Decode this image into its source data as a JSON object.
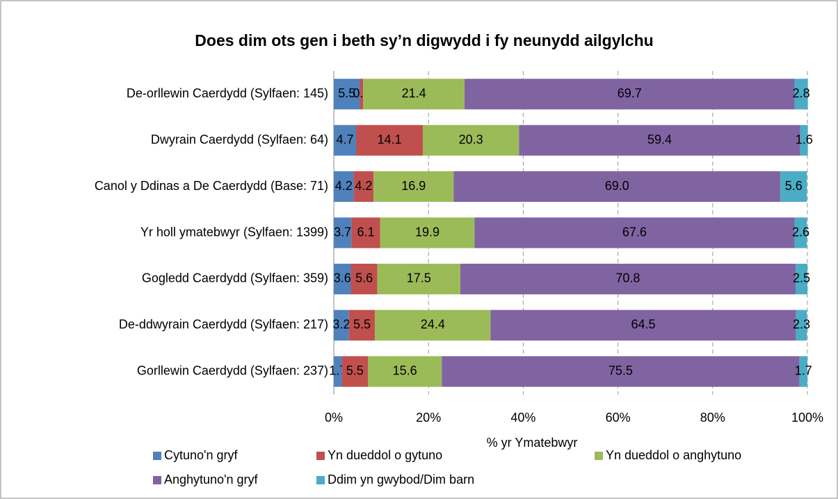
{
  "chart_data": {
    "type": "stacked_barh",
    "title": "Does dim ots gen i beth sy’n digwydd i fy neunydd ailgylchu",
    "xlabel": "% yr Ymatebwyr",
    "categories": [
      "De-orllewin Caerdydd (Sylfaen: 145)",
      "Dwyrain Caerdydd (Sylfaen: 64)",
      "Canol y Ddinas a De Caerdydd (Base: 71)",
      "Yr holl ymatebwyr (Sylfaen: 1399)",
      "Gogledd Caerdydd (Sylfaen: 359)",
      "De-ddwyrain Caerdydd (Sylfaen: 217)",
      "Gorllewin Caerdydd (Sylfaen: 237)"
    ],
    "series": [
      {
        "name": "Cytuno'n gryf",
        "color": "#4f81bd",
        "values": [
          5.5,
          4.7,
          4.2,
          3.7,
          3.6,
          3.2,
          1.7
        ]
      },
      {
        "name": "Yn dueddol o gytuno",
        "color": "#c0504d",
        "values": [
          0.7,
          14.1,
          4.2,
          6.1,
          5.6,
          5.5,
          5.5
        ]
      },
      {
        "name": "Yn dueddol o anghytuno",
        "color": "#9bbb59",
        "values": [
          21.4,
          20.3,
          16.9,
          19.9,
          17.5,
          24.4,
          15.6
        ]
      },
      {
        "name": "Anghytuno'n gryf",
        "color": "#8064a2",
        "values": [
          69.7,
          59.4,
          69.0,
          67.6,
          70.8,
          64.5,
          75.5
        ],
        "value_labels": [
          "69.7",
          "59.4",
          "69.0",
          "67.6",
          "70.8",
          "64.5",
          "75.5"
        ]
      },
      {
        "name": "Ddim yn gwybod/Dim barn",
        "color": "#4bacc6",
        "values": [
          2.8,
          1.6,
          5.6,
          2.6,
          2.5,
          2.3,
          1.7
        ]
      }
    ],
    "xlim": [
      0,
      100
    ],
    "xticks": [
      {
        "value": 0,
        "label": "0%"
      },
      {
        "value": 20,
        "label": "20%"
      },
      {
        "value": 40,
        "label": "40%"
      },
      {
        "value": 60,
        "label": "60%"
      },
      {
        "value": 80,
        "label": "80%"
      },
      {
        "value": 100,
        "label": "100%"
      }
    ],
    "grid": true
  }
}
